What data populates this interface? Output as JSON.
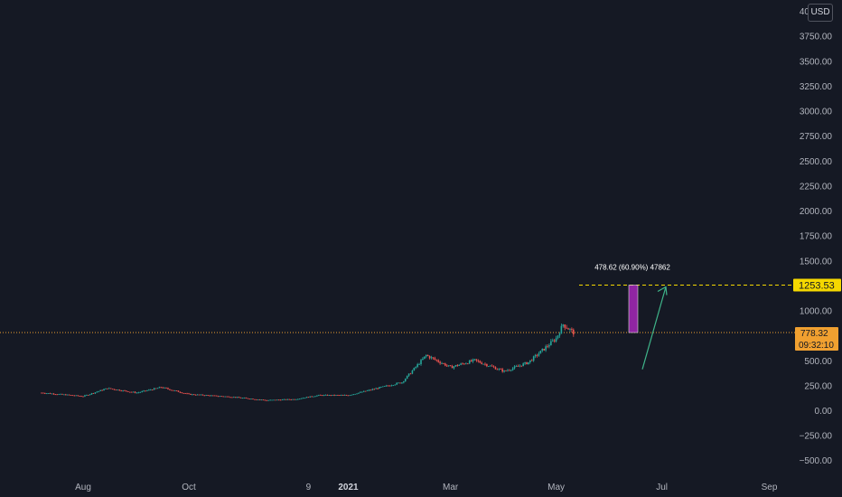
{
  "currency": "USD",
  "price_axis": {
    "ticks": [
      "4000.00",
      "3750.00",
      "3500.00",
      "3250.00",
      "3000.00",
      "2750.00",
      "2500.00",
      "2250.00",
      "2000.00",
      "1750.00",
      "1500.00",
      "1250.00",
      "1000.00",
      "750.00",
      "500.00",
      "250.00",
      "0.00",
      "−250.00",
      "−500.00"
    ]
  },
  "time_axis": {
    "labels": [
      "Aug",
      "Oct",
      "9",
      "2021",
      "Mar",
      "May",
      "Jul",
      "Sep"
    ],
    "bold": [
      "2021"
    ]
  },
  "badges": {
    "target_price": "1253.53",
    "current_price": "778.32",
    "countdown": "09:32:10"
  },
  "measure_label": "478.62 (60.90%) 47862",
  "colors": {
    "up": "#26a69a",
    "down": "#ef5350",
    "target_line": "#f5d800",
    "current_line": "#f0a030",
    "measure_fill": "#9c27b0",
    "arrow": "#3fb58a"
  },
  "chart_data": {
    "type": "candlestick",
    "ylim": [
      -600,
      4050
    ],
    "x_range": [
      "2020-07",
      "2021-09"
    ],
    "approx_close_path": [
      {
        "date": "2020-07-08",
        "value": 175
      },
      {
        "date": "2020-08-01",
        "value": 140
      },
      {
        "date": "2020-08-15",
        "value": 220
      },
      {
        "date": "2020-09-01",
        "value": 175
      },
      {
        "date": "2020-09-15",
        "value": 230
      },
      {
        "date": "2020-10-01",
        "value": 160
      },
      {
        "date": "2020-10-25",
        "value": 135
      },
      {
        "date": "2020-11-15",
        "value": 100
      },
      {
        "date": "2020-12-01",
        "value": 110
      },
      {
        "date": "2020-12-15",
        "value": 150
      },
      {
        "date": "2021-01-01",
        "value": 150
      },
      {
        "date": "2021-01-20",
        "value": 230
      },
      {
        "date": "2021-02-01",
        "value": 280
      },
      {
        "date": "2021-02-15",
        "value": 550
      },
      {
        "date": "2021-03-01",
        "value": 430
      },
      {
        "date": "2021-03-15",
        "value": 500
      },
      {
        "date": "2021-04-01",
        "value": 390
      },
      {
        "date": "2021-04-15",
        "value": 480
      },
      {
        "date": "2021-05-01",
        "value": 720
      },
      {
        "date": "2021-05-05",
        "value": 860
      },
      {
        "date": "2021-05-11",
        "value": 778.32
      }
    ],
    "annotations": {
      "target_price": 1253.53,
      "current_price": 778.32,
      "measure_change": 478.62,
      "measure_percent": 60.9
    }
  }
}
